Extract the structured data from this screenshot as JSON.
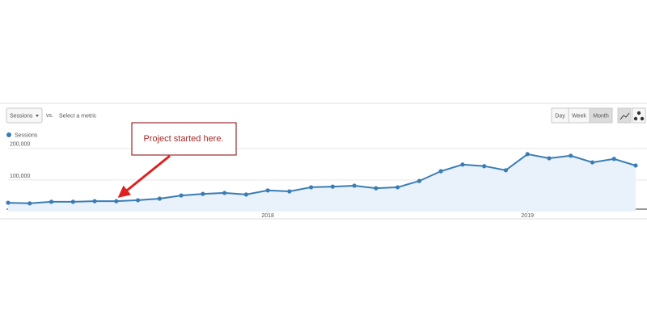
{
  "controls": {
    "metric": "Sessions",
    "vs": "vs.",
    "compare": "Select a metric",
    "buttons": [
      "Day",
      "Week",
      "Month"
    ],
    "active": 2
  },
  "chart_data": {
    "type": "line",
    "annotation": "Project started here.",
    "legend": true,
    "categories": [
      null,
      null,
      null,
      null,
      null,
      null,
      null,
      null,
      null,
      null,
      null,
      null,
      "2018",
      null,
      null,
      null,
      null,
      null,
      null,
      null,
      null,
      null,
      null,
      null,
      "2019",
      null,
      null,
      null,
      null,
      null
    ],
    "series": [
      {
        "name": "Sessions",
        "color": "#3a7db5",
        "values": [
          28000,
          26000,
          31000,
          31000,
          33000,
          33000,
          36000,
          41000,
          51000,
          56000,
          59000,
          54000,
          67000,
          64000,
          77000,
          79000,
          82000,
          74000,
          77000,
          97000,
          128000,
          149000,
          144000,
          131000,
          182000,
          169000,
          177000,
          156000,
          167000,
          146000
        ]
      }
    ],
    "ylim": [
      0,
      215000
    ],
    "yticks": [
      {
        "value": 100000,
        "label": "100,000"
      },
      {
        "value": 200000,
        "label": "200,000"
      }
    ],
    "grid": true
  }
}
